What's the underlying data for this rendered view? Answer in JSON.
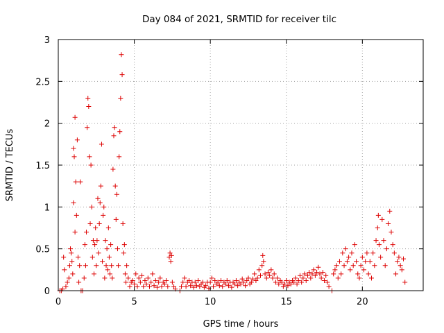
{
  "chart_data": {
    "type": "scatter",
    "title": "Day 084 of 2021, SRMTID for receiver tilc",
    "xlabel": "GPS time / hours",
    "ylabel": "SRMTID / TECUs",
    "xlim": [
      0,
      24
    ],
    "ylim": [
      0,
      3
    ],
    "x_ticks": [
      0,
      5,
      10,
      15,
      20
    ],
    "x_tick_labels": [
      "0",
      "5",
      "10",
      "15",
      "20"
    ],
    "y_ticks": [
      0,
      0.5,
      1,
      1.5,
      2,
      2.5,
      3
    ],
    "y_tick_labels": [
      "0",
      "0.5",
      "1",
      "1.5",
      "2",
      "2.5",
      "3"
    ],
    "grid": true,
    "marker": "+",
    "series": [
      {
        "name": "SRMTID",
        "color": "#dd0000",
        "points": [
          [
            0.1,
            0.0
          ],
          [
            0.2,
            0.0
          ],
          [
            0.3,
            0.02
          ],
          [
            0.35,
            0.4
          ],
          [
            0.4,
            0.25
          ],
          [
            0.5,
            0.05
          ],
          [
            0.6,
            0.1
          ],
          [
            0.7,
            0.15
          ],
          [
            0.75,
            0.3
          ],
          [
            0.8,
            0.5
          ],
          [
            0.85,
            0.45
          ],
          [
            0.9,
            0.35
          ],
          [
            0.95,
            0.2
          ],
          [
            1.0,
            1.05
          ],
          [
            1.0,
            1.7
          ],
          [
            1.05,
            1.6
          ],
          [
            1.1,
            2.07
          ],
          [
            1.1,
            0.7
          ],
          [
            1.15,
            1.3
          ],
          [
            1.2,
            0.9
          ],
          [
            1.25,
            1.8
          ],
          [
            1.3,
            0.4
          ],
          [
            1.35,
            0.1
          ],
          [
            1.4,
            0.3
          ],
          [
            1.45,
            1.3
          ],
          [
            1.5,
            0.0
          ],
          [
            1.6,
            0.0
          ],
          [
            1.7,
            0.15
          ],
          [
            1.75,
            0.55
          ],
          [
            1.8,
            0.3
          ],
          [
            1.85,
            0.7
          ],
          [
            1.9,
            1.95
          ],
          [
            1.95,
            2.3
          ],
          [
            2.0,
            2.2
          ],
          [
            2.05,
            1.6
          ],
          [
            2.1,
            0.8
          ],
          [
            2.15,
            1.5
          ],
          [
            2.2,
            1.0
          ],
          [
            2.25,
            0.4
          ],
          [
            2.3,
            0.6
          ],
          [
            2.35,
            0.2
          ],
          [
            2.4,
            0.55
          ],
          [
            2.45,
            0.75
          ],
          [
            2.5,
            0.3
          ],
          [
            2.55,
            0.6
          ],
          [
            2.6,
            1.1
          ],
          [
            2.65,
            0.45
          ],
          [
            2.7,
            0.8
          ],
          [
            2.75,
            1.05
          ],
          [
            2.8,
            1.25
          ],
          [
            2.85,
            1.75
          ],
          [
            2.9,
            0.35
          ],
          [
            2.95,
            0.9
          ],
          [
            3.0,
            1.0
          ],
          [
            3.05,
            0.15
          ],
          [
            3.1,
            0.6
          ],
          [
            3.15,
            0.3
          ],
          [
            3.2,
            0.5
          ],
          [
            3.25,
            0.25
          ],
          [
            3.3,
            0.75
          ],
          [
            3.35,
            0.4
          ],
          [
            3.4,
            0.2
          ],
          [
            3.45,
            0.55
          ],
          [
            3.5,
            0.3
          ],
          [
            3.55,
            0.15
          ],
          [
            3.6,
            1.45
          ],
          [
            3.65,
            1.85
          ],
          [
            3.7,
            1.95
          ],
          [
            3.75,
            1.25
          ],
          [
            3.8,
            0.85
          ],
          [
            3.85,
            1.15
          ],
          [
            3.9,
            0.5
          ],
          [
            3.95,
            0.3
          ],
          [
            4.0,
            1.6
          ],
          [
            4.05,
            1.9
          ],
          [
            4.1,
            2.3
          ],
          [
            4.15,
            2.82
          ],
          [
            4.2,
            2.58
          ],
          [
            4.25,
            0.8
          ],
          [
            4.3,
            0.45
          ],
          [
            4.35,
            0.55
          ],
          [
            4.4,
            0.2
          ],
          [
            4.45,
            0.1
          ],
          [
            4.5,
            0.3
          ],
          [
            4.6,
            0.15
          ],
          [
            4.7,
            0.05
          ],
          [
            4.8,
            0.1
          ],
          [
            4.9,
            0.12
          ],
          [
            5.0,
            0.08
          ],
          [
            5.1,
            0.2
          ],
          [
            5.2,
            0.05
          ],
          [
            5.3,
            0.15
          ],
          [
            5.4,
            0.1
          ],
          [
            5.5,
            0.18
          ],
          [
            5.6,
            0.05
          ],
          [
            5.7,
            0.12
          ],
          [
            5.8,
            0.08
          ],
          [
            5.9,
            0.15
          ],
          [
            6.0,
            0.05
          ],
          [
            6.1,
            0.1
          ],
          [
            6.2,
            0.2
          ],
          [
            6.3,
            0.06
          ],
          [
            6.4,
            0.12
          ],
          [
            6.5,
            0.04
          ],
          [
            6.6,
            0.1
          ],
          [
            6.7,
            0.15
          ],
          [
            6.8,
            0.05
          ],
          [
            6.9,
            0.1
          ],
          [
            7.0,
            0.08
          ],
          [
            7.1,
            0.12
          ],
          [
            7.2,
            0.05
          ],
          [
            7.3,
            0.4
          ],
          [
            7.35,
            0.45
          ],
          [
            7.4,
            0.35
          ],
          [
            7.45,
            0.42
          ],
          [
            7.5,
            0.1
          ],
          [
            7.6,
            0.05
          ],
          [
            7.7,
            0.02
          ],
          [
            8.0,
            0.0
          ],
          [
            8.1,
            0.05
          ],
          [
            8.2,
            0.1
          ],
          [
            8.3,
            0.15
          ],
          [
            8.4,
            0.05
          ],
          [
            8.5,
            0.1
          ],
          [
            8.6,
            0.12
          ],
          [
            8.7,
            0.06
          ],
          [
            8.8,
            0.1
          ],
          [
            8.9,
            0.04
          ],
          [
            9.0,
            0.1
          ],
          [
            9.1,
            0.06
          ],
          [
            9.2,
            0.12
          ],
          [
            9.3,
            0.05
          ],
          [
            9.4,
            0.08
          ],
          [
            9.5,
            0.1
          ],
          [
            9.6,
            0.04
          ],
          [
            9.7,
            0.06
          ],
          [
            9.8,
            0.1
          ],
          [
            9.9,
            0.03
          ],
          [
            10.0,
            0.1
          ],
          [
            10.1,
            0.15
          ],
          [
            10.2,
            0.05
          ],
          [
            10.3,
            0.12
          ],
          [
            10.4,
            0.08
          ],
          [
            10.5,
            0.1
          ],
          [
            10.6,
            0.06
          ],
          [
            10.7,
            0.12
          ],
          [
            10.8,
            0.05
          ],
          [
            10.9,
            0.1
          ],
          [
            11.0,
            0.08
          ],
          [
            11.1,
            0.12
          ],
          [
            11.2,
            0.06
          ],
          [
            11.3,
            0.1
          ],
          [
            11.4,
            0.04
          ],
          [
            11.5,
            0.1
          ],
          [
            11.6,
            0.08
          ],
          [
            11.7,
            0.12
          ],
          [
            11.8,
            0.06
          ],
          [
            11.9,
            0.1
          ],
          [
            12.0,
            0.08
          ],
          [
            12.1,
            0.14
          ],
          [
            12.2,
            0.1
          ],
          [
            12.3,
            0.06
          ],
          [
            12.4,
            0.12
          ],
          [
            12.5,
            0.15
          ],
          [
            12.6,
            0.08
          ],
          [
            12.7,
            0.1
          ],
          [
            12.8,
            0.14
          ],
          [
            12.9,
            0.2
          ],
          [
            13.0,
            0.12
          ],
          [
            13.1,
            0.15
          ],
          [
            13.2,
            0.25
          ],
          [
            13.3,
            0.18
          ],
          [
            13.4,
            0.3
          ],
          [
            13.45,
            0.42
          ],
          [
            13.5,
            0.35
          ],
          [
            13.6,
            0.2
          ],
          [
            13.7,
            0.15
          ],
          [
            13.8,
            0.22
          ],
          [
            13.9,
            0.18
          ],
          [
            14.0,
            0.25
          ],
          [
            14.1,
            0.15
          ],
          [
            14.2,
            0.2
          ],
          [
            14.3,
            0.1
          ],
          [
            14.4,
            0.15
          ],
          [
            14.5,
            0.08
          ],
          [
            14.6,
            0.12
          ],
          [
            14.7,
            0.1
          ],
          [
            14.8,
            0.05
          ],
          [
            14.9,
            0.08
          ],
          [
            15.0,
            0.12
          ],
          [
            15.1,
            0.06
          ],
          [
            15.2,
            0.1
          ],
          [
            15.3,
            0.08
          ],
          [
            15.4,
            0.12
          ],
          [
            15.5,
            0.1
          ],
          [
            15.6,
            0.15
          ],
          [
            15.7,
            0.08
          ],
          [
            15.8,
            0.12
          ],
          [
            15.9,
            0.18
          ],
          [
            16.0,
            0.1
          ],
          [
            16.1,
            0.15
          ],
          [
            16.2,
            0.2
          ],
          [
            16.3,
            0.12
          ],
          [
            16.4,
            0.18
          ],
          [
            16.5,
            0.22
          ],
          [
            16.6,
            0.15
          ],
          [
            16.7,
            0.2
          ],
          [
            16.8,
            0.25
          ],
          [
            16.9,
            0.18
          ],
          [
            17.0,
            0.22
          ],
          [
            17.1,
            0.28
          ],
          [
            17.2,
            0.2
          ],
          [
            17.3,
            0.15
          ],
          [
            17.4,
            0.22
          ],
          [
            17.5,
            0.12
          ],
          [
            17.6,
            0.18
          ],
          [
            17.7,
            0.1
          ],
          [
            17.8,
            0.05
          ],
          [
            18.0,
            0.0
          ],
          [
            18.1,
            0.2
          ],
          [
            18.2,
            0.25
          ],
          [
            18.3,
            0.3
          ],
          [
            18.4,
            0.15
          ],
          [
            18.5,
            0.35
          ],
          [
            18.6,
            0.2
          ],
          [
            18.7,
            0.45
          ],
          [
            18.8,
            0.3
          ],
          [
            18.9,
            0.5
          ],
          [
            19.0,
            0.35
          ],
          [
            19.1,
            0.4
          ],
          [
            19.2,
            0.25
          ],
          [
            19.3,
            0.45
          ],
          [
            19.4,
            0.3
          ],
          [
            19.5,
            0.55
          ],
          [
            19.6,
            0.35
          ],
          [
            19.7,
            0.2
          ],
          [
            19.8,
            0.15
          ],
          [
            19.9,
            0.3
          ],
          [
            20.0,
            0.4
          ],
          [
            20.1,
            0.25
          ],
          [
            20.2,
            0.35
          ],
          [
            20.3,
            0.45
          ],
          [
            20.4,
            0.2
          ],
          [
            20.5,
            0.35
          ],
          [
            20.6,
            0.15
          ],
          [
            20.7,
            0.45
          ],
          [
            20.8,
            0.3
          ],
          [
            20.9,
            0.6
          ],
          [
            21.0,
            0.75
          ],
          [
            21.05,
            0.9
          ],
          [
            21.1,
            0.55
          ],
          [
            21.2,
            0.4
          ],
          [
            21.3,
            0.85
          ],
          [
            21.4,
            0.6
          ],
          [
            21.5,
            0.3
          ],
          [
            21.6,
            0.5
          ],
          [
            21.7,
            0.8
          ],
          [
            21.8,
            0.95
          ],
          [
            21.9,
            0.7
          ],
          [
            22.0,
            0.55
          ],
          [
            22.1,
            0.45
          ],
          [
            22.2,
            0.2
          ],
          [
            22.3,
            0.35
          ],
          [
            22.4,
            0.4
          ],
          [
            22.5,
            0.3
          ],
          [
            22.6,
            0.25
          ],
          [
            22.7,
            0.38
          ],
          [
            22.8,
            0.1
          ]
        ]
      }
    ]
  }
}
